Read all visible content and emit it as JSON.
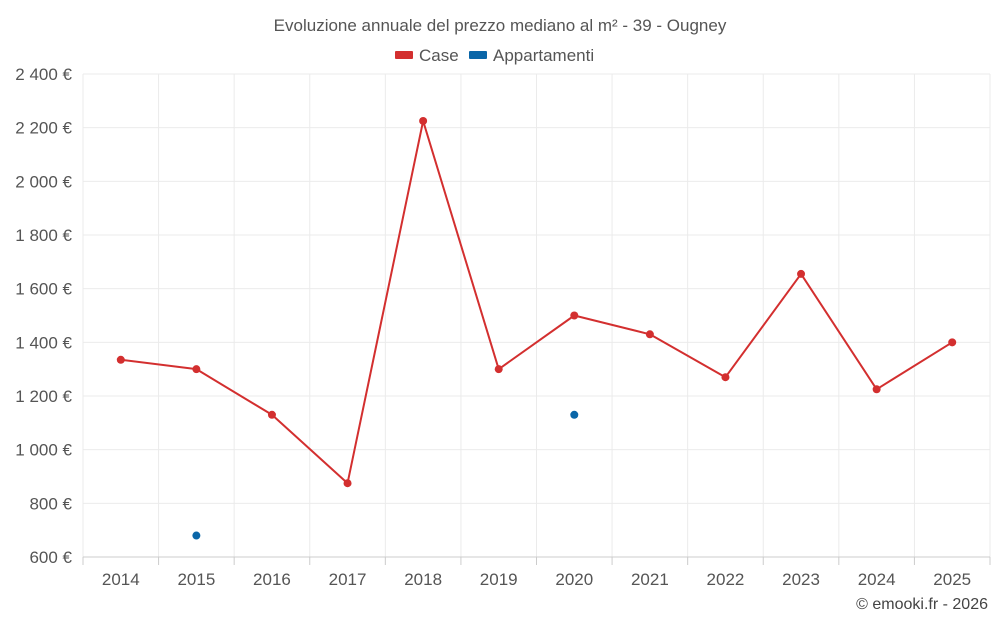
{
  "chart_data": {
    "type": "line",
    "title": "Evoluzione annuale del prezzo mediano al m² - 39 - Ougney",
    "categories": [
      "2014",
      "2015",
      "2016",
      "2017",
      "2018",
      "2019",
      "2020",
      "2021",
      "2022",
      "2023",
      "2024",
      "2025"
    ],
    "ylim": [
      600,
      2400
    ],
    "yticks": [
      600,
      800,
      1000,
      1200,
      1400,
      1600,
      1800,
      2000,
      2200,
      2400
    ],
    "ytick_labels": [
      "600 €",
      "800 €",
      "1 000 €",
      "1 200 €",
      "1 400 €",
      "1 600 €",
      "1 800 €",
      "2 000 €",
      "2 200 €",
      "2 400 €"
    ],
    "grid": true,
    "legend_position": "top-center",
    "series": [
      {
        "name": "Case",
        "color": "#d32f2f",
        "values": [
          1335,
          1300,
          1130,
          875,
          2225,
          1300,
          1500,
          1430,
          1270,
          1655,
          1225,
          1400
        ]
      },
      {
        "name": "Appartamenti",
        "color": "#0a66a8",
        "values": [
          null,
          680,
          null,
          null,
          null,
          null,
          1130,
          null,
          null,
          null,
          null,
          null
        ]
      }
    ],
    "credit": "© emooki.fr - 2026"
  }
}
